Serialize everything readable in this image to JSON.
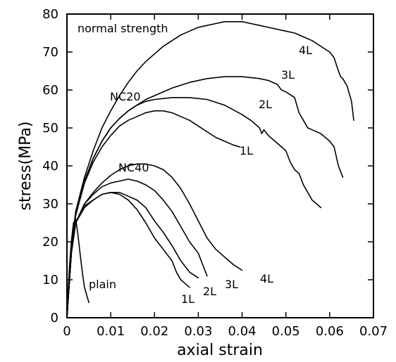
{
  "chart_data": {
    "type": "line",
    "title": "",
    "xlabel": "axial strain",
    "ylabel": "stress(MPa)",
    "xlim": [
      0,
      0.07
    ],
    "ylim": [
      0,
      80
    ],
    "xticks": [
      0,
      0.01,
      0.02,
      0.03,
      0.04,
      0.05,
      0.06,
      0.07
    ],
    "xtick_labels": [
      "0",
      "0.01",
      "0.02",
      "0.03",
      "0.04",
      "0.05",
      "0.06",
      "0.07"
    ],
    "yticks": [
      0,
      10,
      20,
      30,
      40,
      50,
      60,
      70,
      80
    ],
    "ytick_labels": [
      "0",
      "10",
      "20",
      "30",
      "40",
      "50",
      "60",
      "70",
      "80"
    ],
    "grid": false,
    "legend": "none",
    "series": [
      {
        "name": "plain",
        "x": [
          0,
          0.0005,
          0.001,
          0.0015,
          0.002,
          0.0025,
          0.003,
          0.0035,
          0.004,
          0.0045,
          0.005
        ],
        "y": [
          0,
          12,
          20,
          25,
          26,
          22,
          17,
          12,
          8,
          6,
          4
        ]
      },
      {
        "name": "NC40 1L",
        "x": [
          0,
          0.001,
          0.002,
          0.004,
          0.006,
          0.008,
          0.01,
          0.012,
          0.014,
          0.016,
          0.018,
          0.02,
          0.022,
          0.024,
          0.025,
          0.026,
          0.028
        ],
        "y": [
          0,
          17,
          25,
          29,
          31,
          32.5,
          33,
          32.5,
          31,
          28.5,
          25,
          21,
          18,
          15,
          12,
          10,
          8
        ]
      },
      {
        "name": "NC40 2L",
        "x": [
          0,
          0.001,
          0.002,
          0.004,
          0.006,
          0.008,
          0.01,
          0.012,
          0.014,
          0.016,
          0.018,
          0.02,
          0.022,
          0.024,
          0.026,
          0.028,
          0.03
        ],
        "y": [
          0,
          17,
          25,
          29.5,
          31,
          32.5,
          33,
          33,
          32,
          31,
          29,
          25.5,
          22.5,
          19,
          15,
          12,
          10.5
        ]
      },
      {
        "name": "NC40 3L",
        "x": [
          0,
          0.001,
          0.002,
          0.004,
          0.006,
          0.008,
          0.01,
          0.012,
          0.014,
          0.016,
          0.018,
          0.02,
          0.022,
          0.024,
          0.026,
          0.028,
          0.03,
          0.031,
          0.032
        ],
        "y": [
          0,
          17,
          25,
          30,
          32.5,
          34.5,
          35.5,
          36,
          36.5,
          36,
          35,
          33.5,
          31,
          28,
          24,
          20,
          17,
          14,
          11
        ]
      },
      {
        "name": "NC40 4L",
        "x": [
          0,
          0.001,
          0.002,
          0.004,
          0.006,
          0.008,
          0.01,
          0.012,
          0.014,
          0.016,
          0.018,
          0.02,
          0.022,
          0.024,
          0.026,
          0.028,
          0.03,
          0.032,
          0.034,
          0.036,
          0.038,
          0.04
        ],
        "y": [
          0,
          17,
          25,
          30,
          33,
          35.5,
          37.5,
          39,
          40,
          40.5,
          40.5,
          40,
          39,
          37,
          34,
          30,
          25.5,
          21,
          18,
          16,
          14,
          12.5
        ]
      },
      {
        "name": "NC20 1L",
        "x": [
          0,
          0.001,
          0.002,
          0.004,
          0.006,
          0.008,
          0.01,
          0.012,
          0.014,
          0.016,
          0.018,
          0.02,
          0.022,
          0.024,
          0.026,
          0.028,
          0.03,
          0.032,
          0.034,
          0.036,
          0.038,
          0.0395
        ],
        "y": [
          0,
          17,
          27,
          35.5,
          41,
          45,
          48,
          50.5,
          52,
          53,
          54,
          54.5,
          54.5,
          54,
          53,
          52,
          50.5,
          49,
          47.5,
          46.5,
          45.5,
          45
        ]
      },
      {
        "name": "NC20 2L",
        "x": [
          0,
          0.001,
          0.002,
          0.004,
          0.006,
          0.008,
          0.01,
          0.012,
          0.014,
          0.016,
          0.018,
          0.02,
          0.024,
          0.028,
          0.032,
          0.036,
          0.04,
          0.042,
          0.044,
          0.0445,
          0.045,
          0.046,
          0.048,
          0.05,
          0.051,
          0.052,
          0.053,
          0.054,
          0.055,
          0.056,
          0.057,
          0.058
        ],
        "y": [
          0,
          17,
          27,
          36,
          42,
          46.5,
          50,
          52.5,
          54.5,
          56,
          57,
          57.5,
          58,
          58,
          57.5,
          56,
          53.5,
          52,
          50,
          48.5,
          49.5,
          48,
          46,
          44,
          41,
          39,
          38,
          35,
          33,
          31,
          30,
          29
        ]
      },
      {
        "name": "NC20 3L",
        "x": [
          0,
          0.001,
          0.002,
          0.004,
          0.006,
          0.008,
          0.01,
          0.012,
          0.014,
          0.016,
          0.018,
          0.02,
          0.024,
          0.028,
          0.032,
          0.036,
          0.04,
          0.044,
          0.046,
          0.048,
          0.049,
          0.05,
          0.052,
          0.053,
          0.054,
          0.055,
          0.056,
          0.058,
          0.06,
          0.061,
          0.062,
          0.063
        ],
        "y": [
          0,
          17,
          27,
          36,
          42,
          46.5,
          50,
          52.5,
          54.5,
          56,
          57.5,
          58.5,
          60.5,
          62,
          63,
          63.5,
          63.5,
          63,
          62.5,
          61.5,
          60,
          59.5,
          58,
          54,
          52,
          50,
          49.5,
          48.5,
          46.5,
          45,
          40,
          37
        ]
      },
      {
        "name": "NC20 4L",
        "x": [
          0,
          0.001,
          0.002,
          0.004,
          0.006,
          0.008,
          0.01,
          0.012,
          0.014,
          0.016,
          0.018,
          0.02,
          0.022,
          0.024,
          0.026,
          0.028,
          0.03,
          0.032,
          0.034,
          0.036,
          0.038,
          0.04,
          0.042,
          0.044,
          0.046,
          0.048,
          0.05,
          0.052,
          0.054,
          0.056,
          0.058,
          0.06,
          0.061,
          0.062,
          0.0625,
          0.063,
          0.064,
          0.065,
          0.0655
        ],
        "y": [
          0,
          18,
          28,
          37,
          44,
          50,
          54.5,
          58.5,
          62,
          65,
          67.5,
          69.5,
          71.5,
          73,
          74.5,
          75.5,
          76.5,
          77,
          77.5,
          78,
          78,
          78,
          77.5,
          77,
          76.5,
          76,
          75.5,
          75,
          74,
          73,
          71.5,
          70,
          68.5,
          65,
          63.5,
          63,
          61,
          57,
          52
        ]
      }
    ],
    "annotations": [
      "normal strength",
      "NC20",
      "NC40",
      "plain",
      "1L",
      "2L",
      "3L",
      "4L",
      "1L",
      "2L",
      "3L",
      "4L"
    ]
  }
}
